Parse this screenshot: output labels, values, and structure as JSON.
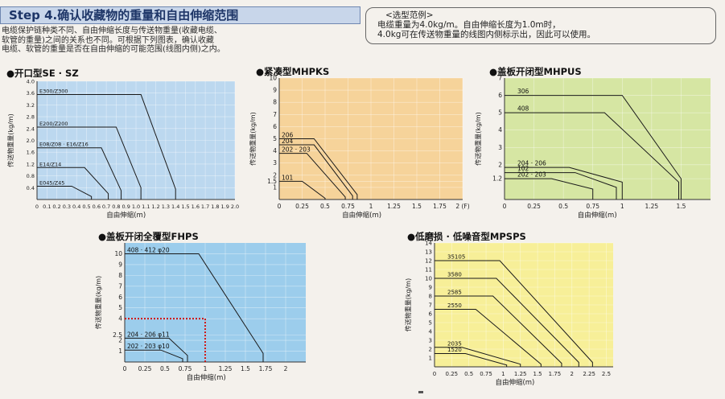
{
  "header": {
    "step_title": "Step 4.确认收藏物的重量和自由伸缩范围",
    "intro_lines": [
      "电缆保护链种类不同、自由伸缩长度与传送物重量(收藏电缆、",
      "软管的重量)之间的关系也不同。可根据下列图表，确认收藏",
      "电缆、软管的重量是否在自由伸缩的可能范围(线图内侧)之内。"
    ]
  },
  "example": {
    "title": "<选型范例>",
    "lines": [
      "电缆重量为4.0kg/m。自由伸缩长度为1.0m时，",
      "4.0kg可在传送物重量的线图内侧标示出，因此可以使用。"
    ]
  },
  "colors": {
    "se_bg": "#bcd8ef",
    "mhpks_bg": "#f6d39a",
    "mhpus_bg": "#d6e6a3",
    "fhps_bg": "#9ccdec",
    "mpsps_bg": "#f7ef98",
    "line": "#1a1a1a",
    "example_marker": "#cc1111"
  },
  "chart_data": [
    {
      "id": "se",
      "type": "line",
      "title": "●开口型SE · SZ",
      "xlabel": "自由伸缩(m)",
      "ylabel": "传送物重量(kg/m)",
      "xlim": [
        0,
        2.0
      ],
      "ylim": [
        0,
        4.0
      ],
      "xticks": [
        0,
        0.1,
        0.2,
        0.3,
        0.4,
        0.5,
        0.6,
        0.7,
        0.8,
        0.9,
        1.0,
        1.1,
        1.2,
        1.3,
        1.4,
        1.5,
        1.6,
        1.7,
        1.8,
        1.9,
        2.0
      ],
      "xtick_labels": [
        "0",
        "0.1",
        "0.2",
        "0.3",
        "0.4",
        "0.5",
        "0.6",
        "0.7",
        "0.8",
        "0.9",
        "1.0",
        "1.1",
        "1.2",
        "1.3",
        "1.4",
        "1.5",
        "1.6",
        "1.7",
        "1.8",
        "1.9",
        "2.0"
      ],
      "yticks": [
        0.4,
        0.8,
        1.2,
        1.6,
        2.0,
        2.4,
        2.8,
        3.2,
        3.6,
        4.0
      ],
      "ytick_labels": [
        "0.4",
        "0.8",
        "1.2",
        "1.6",
        "2.0",
        "2.4",
        "2.8",
        "3.2",
        "3.6",
        "4.0"
      ],
      "series": [
        {
          "name": "E300/Z300",
          "x": [
            0,
            1.05,
            1.4,
            1.4
          ],
          "y": [
            3.55,
            3.55,
            0.35,
            0
          ]
        },
        {
          "name": "E200/Z200",
          "x": [
            0,
            0.8,
            1.05,
            1.05
          ],
          "y": [
            2.45,
            2.45,
            0.4,
            0
          ]
        },
        {
          "name": "E08/Z08 · E16/Z16",
          "x": [
            0,
            0.65,
            0.85,
            0.85
          ],
          "y": [
            1.75,
            1.75,
            0.3,
            0
          ]
        },
        {
          "name": "E14/Z14",
          "x": [
            0,
            0.48,
            0.72,
            0.72
          ],
          "y": [
            1.08,
            1.08,
            0.2,
            0
          ]
        },
        {
          "name": "E045/Z45",
          "x": [
            0,
            0.35,
            0.55,
            0.55
          ],
          "y": [
            0.45,
            0.45,
            0.1,
            0
          ]
        }
      ]
    },
    {
      "id": "mhpks",
      "type": "line",
      "title": "●紧凑型MHPKS",
      "xlabel": "自由伸缩(m)",
      "ylabel": "传送物重量(kg/m)",
      "xlim": [
        0,
        2.0
      ],
      "ylim": [
        0,
        10
      ],
      "xticks": [
        0,
        0.25,
        0.5,
        0.75,
        1,
        1.25,
        1.5,
        1.75,
        2
      ],
      "xtick_labels": [
        "0",
        "0.25",
        "0.5",
        "0.75",
        "1",
        "1.25",
        "1.5",
        "1.75",
        "2 (F)"
      ],
      "yticks": [
        1,
        1.5,
        2,
        3,
        4,
        5,
        6,
        7,
        8,
        9,
        10
      ],
      "ytick_labels": [
        "1",
        "1.5",
        "2",
        "3",
        "4",
        "5",
        "6",
        "7",
        "8",
        "9",
        "10"
      ],
      "series": [
        {
          "name": "206",
          "x": [
            0,
            0.38,
            0.85,
            0.85
          ],
          "y": [
            5,
            5,
            0.4,
            0
          ]
        },
        {
          "name": "204",
          "x": [
            0,
            0.38,
            0.8,
            0.8
          ],
          "y": [
            4.5,
            4.5,
            0.3,
            0
          ]
        },
        {
          "name": "202 · 203",
          "x": [
            0,
            0.3,
            0.72,
            0.72
          ],
          "y": [
            3.8,
            3.8,
            0.2,
            0
          ]
        },
        {
          "name": "101",
          "x": [
            0,
            0.25,
            0.5,
            0.5
          ],
          "y": [
            1.5,
            1.5,
            0.1,
            0
          ]
        }
      ]
    },
    {
      "id": "mhpus",
      "type": "line",
      "title": "●盖板开闭型MHPUS",
      "xlabel": "自由伸缩(m)",
      "ylabel": "传送物重量(kg/m)",
      "xlim": [
        0,
        1.75
      ],
      "ylim": [
        0,
        7
      ],
      "xticks": [
        0,
        0.25,
        0.5,
        0.75,
        1,
        1.25,
        1.5
      ],
      "xtick_labels": [
        "0",
        "0.25",
        "0.5",
        "0.75",
        "1",
        "1.25",
        "1.5"
      ],
      "yticks": [
        1.2,
        2,
        3,
        4,
        5,
        6,
        7
      ],
      "ytick_labels": [
        "1.2",
        "2",
        "3",
        "4",
        "5",
        "6",
        "7"
      ],
      "series": [
        {
          "name": "306",
          "x": [
            0,
            1.0,
            1.5,
            1.5
          ],
          "y": [
            6,
            6,
            1.2,
            0
          ]
        },
        {
          "name": "408",
          "x": [
            0,
            0.85,
            1.48,
            1.48
          ],
          "y": [
            5,
            5,
            1.0,
            0
          ]
        },
        {
          "name": "204 · 206",
          "x": [
            0,
            0.55,
            1.0,
            1.0
          ],
          "y": [
            1.85,
            1.85,
            1.0,
            0
          ]
        },
        {
          "name": "102",
          "x": [
            0,
            0.6,
            0.95,
            0.95
          ],
          "y": [
            1.55,
            1.55,
            0.7,
            0
          ]
        },
        {
          "name": "202 · 203",
          "x": [
            0,
            0.4,
            0.75,
            0.75
          ],
          "y": [
            1.2,
            1.2,
            0.6,
            0
          ]
        }
      ]
    },
    {
      "id": "fhps",
      "type": "line",
      "title": "●盖板开闭全覆型FHPS",
      "xlabel": "自由伸缩(m)",
      "ylabel": "传送物重量(kg/m)",
      "xlim": [
        0,
        2.25
      ],
      "ylim": [
        0,
        11
      ],
      "xticks": [
        0,
        0.25,
        0.5,
        0.75,
        1,
        1.25,
        1.5,
        1.75,
        2
      ],
      "xtick_labels": [
        "0",
        "0.25",
        "0.5",
        "0.75",
        "1",
        "1.25",
        "1.5",
        "1.75",
        "2"
      ],
      "yticks": [
        1,
        2,
        2.5,
        4,
        5,
        6,
        7,
        8,
        9,
        10
      ],
      "ytick_labels": [
        "1",
        "2",
        "2.5",
        "4",
        "5",
        "6",
        "7",
        "8",
        "9",
        "10"
      ],
      "series": [
        {
          "name": "408 · 412 φ20",
          "x": [
            0,
            0.92,
            1.72,
            1.72
          ],
          "y": [
            10,
            10,
            0.8,
            0
          ]
        },
        {
          "name": "204 · 206 φ11",
          "x": [
            0,
            0.55,
            0.78,
            0.78
          ],
          "y": [
            2.2,
            2.2,
            0.6,
            0
          ]
        },
        {
          "name": "202 · 203 φ10",
          "x": [
            0,
            0.45,
            0.72,
            0.72
          ],
          "y": [
            1.1,
            1.1,
            0.3,
            0
          ]
        }
      ],
      "example_point": {
        "x": 1,
        "y": 4
      }
    },
    {
      "id": "mpsps",
      "type": "line",
      "title": "●低磨损 · 低噪音型MPSPS",
      "xlabel": "自由伸缩(m)",
      "ylabel": "传送物重量(kg/m)",
      "xlim": [
        0,
        2.6
      ],
      "ylim": [
        0,
        14
      ],
      "xticks": [
        0,
        0.25,
        0.5,
        0.75,
        1,
        1.25,
        1.5,
        1.75,
        2,
        2.25,
        2.5
      ],
      "xtick_labels": [
        "0",
        "0.25",
        "0.5",
        "0.75",
        "1",
        "1.25",
        "1.5",
        "1.75",
        "2",
        "2.25",
        "2.5"
      ],
      "yticks": [
        1,
        2,
        3,
        4,
        5,
        6,
        7,
        8,
        9,
        10,
        11,
        12,
        13,
        14
      ],
      "ytick_labels": [
        "1",
        "2",
        "3",
        "4",
        "5",
        "6",
        "7",
        "8",
        "9",
        "10",
        "11",
        "12",
        "13",
        "14"
      ],
      "series": [
        {
          "name": "35105",
          "x": [
            0,
            0.95,
            2.3,
            2.3
          ],
          "y": [
            12,
            12,
            0.5,
            0
          ]
        },
        {
          "name": "3580",
          "x": [
            0,
            0.9,
            2.1,
            2.1
          ],
          "y": [
            10,
            10,
            0.5,
            0
          ]
        },
        {
          "name": "2585",
          "x": [
            0,
            0.85,
            1.85,
            1.85
          ],
          "y": [
            8,
            8,
            0.4,
            0
          ]
        },
        {
          "name": "2550",
          "x": [
            0,
            0.6,
            1.55,
            1.55
          ],
          "y": [
            6.5,
            6.5,
            0.3,
            0
          ]
        },
        {
          "name": "2035",
          "x": [
            0,
            0.4,
            1.25,
            1.25
          ],
          "y": [
            2.2,
            2.2,
            0.3,
            0
          ]
        },
        {
          "name": "1520",
          "x": [
            0,
            0.45,
            1.05,
            1.05
          ],
          "y": [
            1.5,
            1.5,
            0.2,
            0
          ]
        }
      ]
    }
  ]
}
